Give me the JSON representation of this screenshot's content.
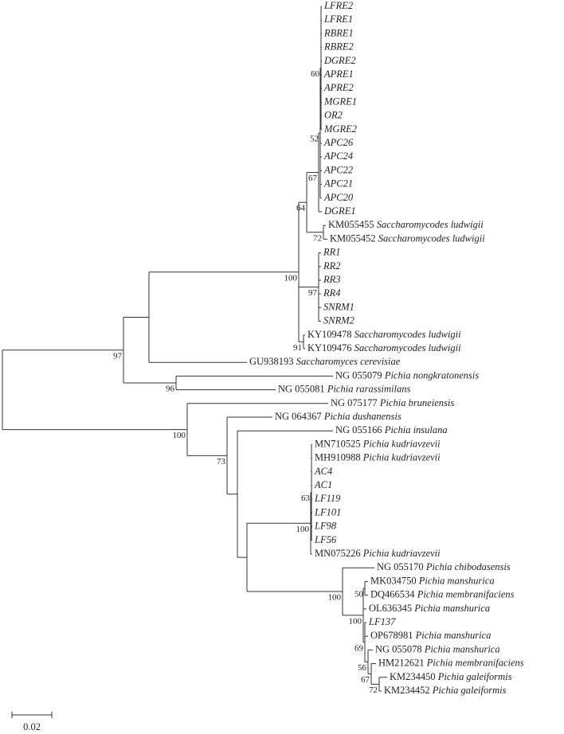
{
  "leaves": [
    {
      "name": "LFRE2"
    },
    {
      "name": "LFRE1"
    },
    {
      "name": "RBRE1"
    },
    {
      "name": "RBRE2"
    },
    {
      "name": "DGRE2"
    },
    {
      "name": "APRE1"
    },
    {
      "name": "APRE2"
    },
    {
      "name": "MGRE1"
    },
    {
      "name": "OR2"
    },
    {
      "name": "MGRE2"
    },
    {
      "name": "APC26"
    },
    {
      "name": "APC24"
    },
    {
      "name": "APC22"
    },
    {
      "name": "APC21"
    },
    {
      "name": "APC20"
    },
    {
      "name": "DGRE1"
    },
    {
      "accession": "KM055455",
      "species": "Saccharomycodes ludwigii"
    },
    {
      "accession": "KM055452",
      "species": "Saccharomycodes ludwigii"
    },
    {
      "name": "RR1"
    },
    {
      "name": "RR2"
    },
    {
      "name": "RR3"
    },
    {
      "name": "RR4"
    },
    {
      "name": "SNRM1"
    },
    {
      "name": "SNRM2"
    },
    {
      "accession": "KY109478",
      "species": "Saccharomycodes ludwigii"
    },
    {
      "accession": "KY109476",
      "species": "Saccharomycodes ludwigii"
    },
    {
      "accession": "GU938193",
      "species": "Saccharomyces cerevisiae"
    },
    {
      "accession": "NG 055079",
      "species": "Pichia nongkratonensis"
    },
    {
      "accession": "NG 055081",
      "species": "Pichia rarassimilans"
    },
    {
      "accession": "NG 075177",
      "species": "Pichia bruneiensis"
    },
    {
      "accession": "NG 064367",
      "species": "Pichia dushanensis"
    },
    {
      "accession": "NG 055166",
      "species": "Pichia insulana"
    },
    {
      "accession": "MN710525",
      "species": "Pichia kudriavzevii"
    },
    {
      "accession": "MH910988",
      "species": "Pichia kudriavzevii"
    },
    {
      "name": "AC4"
    },
    {
      "name": "AC1"
    },
    {
      "name": "LF119"
    },
    {
      "name": "LF101"
    },
    {
      "name": "LF98"
    },
    {
      "name": "LF56"
    },
    {
      "accession": "MN075226",
      "species": "Pichia kudriavzevii"
    },
    {
      "accession": "NG 055170",
      "species": "Pichia chibodasensis"
    },
    {
      "accession": "MK034750",
      "species": "Pichia manshurica"
    },
    {
      "accession": "DQ466534",
      "species": "Pichia membranifaciens"
    },
    {
      "accession": "OL636345",
      "species": "Pichia manshurica"
    },
    {
      "name": "LF137"
    },
    {
      "accession": "OP678981",
      "species": "Pichia manshurica"
    },
    {
      "accession": "NG 055078",
      "species": "Pichia manshurica"
    },
    {
      "accession": "HM212621",
      "species": "Pichia membranifaciens"
    },
    {
      "accession": "KM234450",
      "species": "Pichia galeiformis"
    },
    {
      "accession": "KM234452",
      "species": "Pichia galeiformis"
    }
  ],
  "support": [
    60,
    52,
    67,
    64,
    72,
    100,
    97,
    91,
    97,
    96,
    100,
    73,
    63,
    100,
    50,
    100,
    100,
    69,
    56,
    67,
    72
  ],
  "scale_bar": {
    "label": "0.02"
  }
}
